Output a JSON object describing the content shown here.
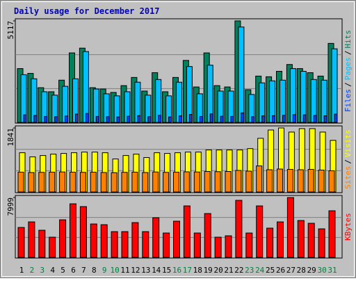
{
  "title": "Daily usage for December 2017",
  "legend_separator": "/",
  "weekend_color": "#008040",
  "weekend_days": [
    "2",
    "3",
    "9",
    "10",
    "16",
    "17",
    "23",
    "24",
    "30",
    "31"
  ],
  "chart_data": [
    {
      "type": "bar",
      "categories": [
        "1",
        "2",
        "3",
        "4",
        "5",
        "6",
        "7",
        "8",
        "9",
        "10",
        "11",
        "12",
        "13",
        "14",
        "15",
        "16",
        "17",
        "18",
        "19",
        "20",
        "21",
        "22",
        "23",
        "24",
        "25",
        "26",
        "27",
        "28",
        "29",
        "30",
        "31"
      ],
      "ylim": [
        0,
        5117
      ],
      "yticks": [
        5117
      ],
      "series": [
        {
          "name": "Hits",
          "color": "#00805c",
          "values": [
            2713,
            2472,
            1751,
            1545,
            2129,
            3503,
            3743,
            1751,
            1683,
            1511,
            1854,
            2266,
            1580,
            2507,
            1545,
            2266,
            3125,
            1786,
            3503,
            1854,
            1786,
            5117,
            1648,
            2335,
            2301,
            2576,
            2919,
            2713,
            2507,
            2335,
            3983
          ]
        },
        {
          "name": "Pages",
          "color": "#00c0ff",
          "values": [
            2404,
            2198,
            1545,
            1374,
            1820,
            2198,
            3571,
            1683,
            1442,
            1339,
            1545,
            2026,
            1374,
            2163,
            1339,
            2026,
            2816,
            1442,
            2885,
            1580,
            1580,
            4808,
            1408,
            1992,
            2095,
            2129,
            2713,
            2576,
            2163,
            2129,
            3709
          ]
        },
        {
          "name": "Files",
          "color": "#0040ff",
          "values": [
            380,
            350,
            300,
            290,
            320,
            420,
            450,
            300,
            290,
            280,
            310,
            340,
            290,
            360,
            280,
            330,
            400,
            300,
            430,
            310,
            300,
            480,
            290,
            330,
            340,
            360,
            390,
            380,
            350,
            330,
            420
          ]
        }
      ]
    },
    {
      "type": "bar",
      "categories": [
        "1",
        "2",
        "3",
        "4",
        "5",
        "6",
        "7",
        "8",
        "9",
        "10",
        "11",
        "12",
        "13",
        "14",
        "15",
        "16",
        "17",
        "18",
        "19",
        "20",
        "21",
        "22",
        "23",
        "24",
        "25",
        "26",
        "27",
        "28",
        "29",
        "30",
        "31"
      ],
      "ylim": [
        0,
        1841
      ],
      "yticks": [
        1841
      ],
      "series": [
        {
          "name": "Visits",
          "color": "#ffff00",
          "values": [
            1129,
            1010,
            1049,
            1089,
            1109,
            1129,
            1148,
            1148,
            1129,
            950,
            1049,
            1089,
            990,
            1129,
            1109,
            1129,
            1148,
            1148,
            1208,
            1208,
            1208,
            1208,
            1247,
            1544,
            1782,
            1841,
            1723,
            1822,
            1822,
            1723,
            1485
          ]
        },
        {
          "name": "Sites",
          "color": "#ff8000",
          "values": [
            570,
            560,
            565,
            570,
            575,
            570,
            565,
            570,
            560,
            555,
            565,
            570,
            560,
            575,
            565,
            570,
            580,
            575,
            590,
            585,
            590,
            620,
            600,
            750,
            640,
            660,
            650,
            640,
            650,
            630,
            610
          ]
        }
      ]
    },
    {
      "type": "bar",
      "categories": [
        "1",
        "2",
        "3",
        "4",
        "5",
        "6",
        "7",
        "8",
        "9",
        "10",
        "11",
        "12",
        "13",
        "14",
        "15",
        "16",
        "17",
        "18",
        "19",
        "20",
        "21",
        "22",
        "23",
        "24",
        "25",
        "26",
        "27",
        "28",
        "29",
        "30",
        "31"
      ],
      "ylim": [
        0,
        7999
      ],
      "yticks": [
        7999
      ],
      "series": [
        {
          "name": "KBytes",
          "color": "#ff0000",
          "values": [
            3999,
            4743,
            3627,
            2697,
            5022,
            7161,
            6789,
            4464,
            4371,
            3441,
            3441,
            4650,
            3441,
            5301,
            3255,
            4836,
            6882,
            3255,
            5859,
            2697,
            2883,
            7626,
            3255,
            6882,
            3906,
            4743,
            7999,
            4929,
            4557,
            3813,
            6231
          ]
        }
      ]
    }
  ]
}
